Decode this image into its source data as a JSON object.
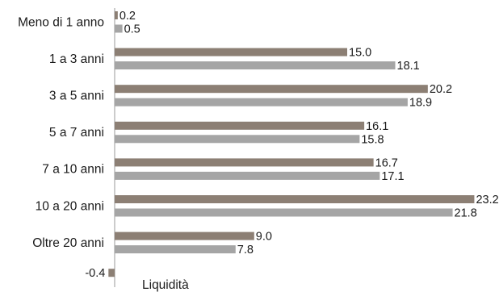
{
  "chart_data": {
    "type": "bar",
    "orientation": "horizontal",
    "categories": [
      "Meno di 1 anno",
      "1 a 3 anni",
      "3 a 5 anni",
      "5 a 7 anni",
      "7 a 10 anni",
      "10 a 20 anni",
      "Oltre 20 anni",
      "Liquidità"
    ],
    "series": [
      {
        "color": "#8c7f74",
        "values": [
          0.2,
          15.0,
          20.2,
          16.1,
          16.7,
          23.2,
          9.0,
          -0.4
        ],
        "labels": [
          "0.2",
          "15.0",
          "20.2",
          "16.1",
          "16.7",
          "23.2",
          "9.0",
          "-0.4"
        ]
      },
      {
        "color": "#a5a5a5",
        "values": [
          0.5,
          18.1,
          18.9,
          15.8,
          17.1,
          21.8,
          7.8,
          null
        ],
        "labels": [
          "0.5",
          "18.1",
          "18.9",
          "15.8",
          "17.1",
          "21.8",
          "7.8",
          null
        ]
      }
    ],
    "xlim": [
      -0.4,
      23.2
    ],
    "grid": false,
    "legend": "none"
  }
}
